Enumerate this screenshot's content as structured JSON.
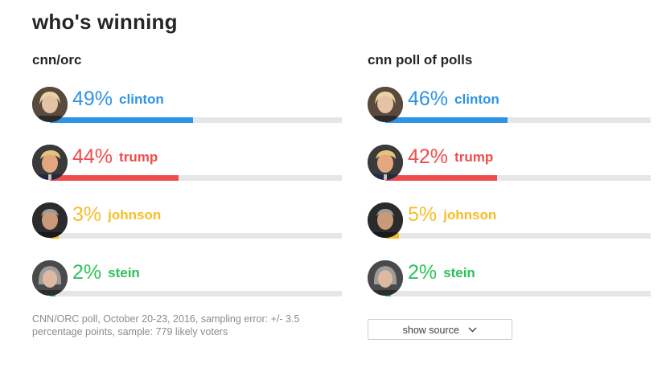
{
  "page_title": "who's winning",
  "colors": {
    "clinton": "#2f93e6",
    "trump": "#f04c4c",
    "johnson": "#f7bd26",
    "stein": "#2ec25b",
    "track": "#e6e6e6"
  },
  "chart_data": [
    {
      "type": "bar",
      "title": "cnn/orc",
      "categories": [
        "clinton",
        "trump",
        "johnson",
        "stein"
      ],
      "values": [
        49,
        44,
        3,
        2
      ],
      "value_labels": [
        "49%",
        "44%",
        "3%",
        "2%"
      ],
      "xlim": [
        0,
        100
      ]
    },
    {
      "type": "bar",
      "title": "cnn poll of polls",
      "categories": [
        "clinton",
        "trump",
        "johnson",
        "stein"
      ],
      "values": [
        46,
        42,
        5,
        2
      ],
      "value_labels": [
        "46%",
        "42%",
        "5%",
        "2%"
      ],
      "xlim": [
        0,
        100
      ]
    }
  ],
  "footnote": "CNN/ORC poll, October 20-23, 2016, sampling error: +/- 3.5 percentage points, sample: 779 likely voters",
  "source_button": {
    "label": "show source",
    "icon": "chevron-down-icon"
  }
}
